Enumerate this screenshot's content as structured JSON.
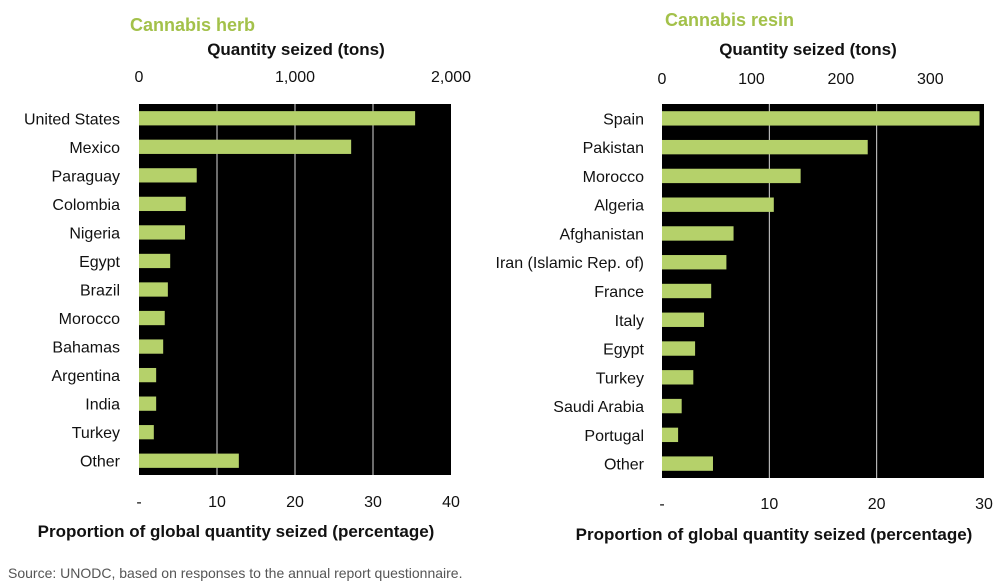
{
  "source": "Source: UNODC, based on responses to the annual report questionnaire.",
  "colors": {
    "bar": "#b5d16a",
    "plot_bg": "#000000",
    "title": "#a3c14a",
    "grid": "#ffffff"
  },
  "chart_data": [
    {
      "type": "bar",
      "orientation": "horizontal",
      "title": "Cannabis herb",
      "top_axis": {
        "label": "Quantity seized (tons)",
        "ticks": [
          "0",
          "1,000",
          "2,000"
        ],
        "range": [
          0,
          2000
        ]
      },
      "bottom_axis": {
        "label": "Proportion of global quantity seized (percentage)",
        "ticks": [
          "-",
          "10",
          "20",
          "30",
          "40"
        ],
        "range": [
          0,
          40
        ]
      },
      "categories": [
        "United States",
        "Mexico",
        "Paraguay",
        "Colombia",
        "Nigeria",
        "Egypt",
        "Brazil",
        "Morocco",
        "Bahamas",
        "Argentina",
        "India",
        "Turkey",
        "Other"
      ],
      "values": [
        1770,
        1360,
        370,
        300,
        295,
        200,
        185,
        165,
        155,
        110,
        110,
        95,
        640
      ],
      "value_unit": "tons",
      "grid": true
    },
    {
      "type": "bar",
      "orientation": "horizontal",
      "title": "Cannabis resin",
      "top_axis": {
        "label": "Quantity seized (tons)",
        "ticks": [
          "0",
          "100",
          "200",
          "300"
        ],
        "range": [
          0,
          360
        ]
      },
      "bottom_axis": {
        "label": "Proportion of global quantity seized (percentage)",
        "ticks": [
          "-",
          "10",
          "20",
          "30"
        ],
        "range": [
          0,
          30
        ]
      },
      "categories": [
        "Spain",
        "Pakistan",
        "Morocco",
        "Algeria",
        "Afghanistan",
        "Iran (Islamic Rep. of)",
        "France",
        "Italy",
        "Egypt",
        "Turkey",
        "Saudi Arabia",
        "Portugal",
        "Other"
      ],
      "values": [
        355,
        230,
        155,
        125,
        80,
        72,
        55,
        47,
        37,
        35,
        22,
        18,
        57
      ],
      "value_unit": "tons",
      "grid": true
    }
  ]
}
